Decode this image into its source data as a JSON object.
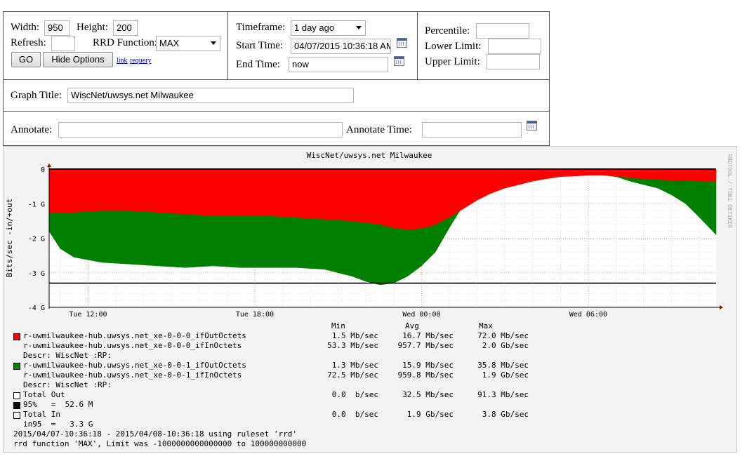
{
  "form": {
    "width_label": "Width:",
    "width_value": "950",
    "height_label": "Height:",
    "height_value": "200",
    "refresh_label": "Refresh:",
    "refresh_value": "",
    "rrd_label": "RRD Function:",
    "rrd_value": "MAX",
    "go_label": "GO",
    "hide_label": "Hide Options",
    "link_label": "link",
    "requery_label": "requery",
    "timeframe_label": "Timeframe:",
    "timeframe_value": "1 day ago",
    "start_label": "Start Time:",
    "start_value": "04/07/2015 10:36:18 AM",
    "end_label": "End Time:",
    "end_value": "now",
    "percentile_label": "Percentile:",
    "percentile_value": "",
    "lower_label": "Lower Limit:",
    "lower_value": "",
    "upper_label": "Upper Limit:",
    "upper_value": "",
    "graph_title_label": "Graph Title:",
    "graph_title_value": "WiscNet/uwsys.net Milwaukee",
    "annotate_label": "Annotate:",
    "annotate_value": "",
    "annotate_time_label": "Annotate Time:",
    "annotate_time_value": ""
  },
  "chart_data": {
    "type": "area",
    "title": "WiscNet/uwsys.net Milwaukee",
    "ylabel": "Bits/sec -in/+out",
    "ylim": [
      -4,
      0
    ],
    "y_unit": "G",
    "y_ticks": [
      "0",
      "-1 G",
      "-2 G",
      "-3 G",
      "-4 G"
    ],
    "x_ticks": [
      "Tue 12:00",
      "Tue 18:00",
      "Wed 00:00",
      "Wed 06:00"
    ],
    "x_hours": [
      12,
      18,
      24,
      30
    ],
    "x_range_hours": [
      10.6,
      34.6
    ],
    "side_label": "RRDTOOL / TOBI OETIKER",
    "grid": true,
    "reference_line_value": -3.3,
    "series": [
      {
        "name": "r-uwmilwaukee-hub.uwsys.net_xe-0-0-0_ifInOctets",
        "color": "#ff0000",
        "x": [
          10.6,
          11.5,
          12.5,
          13.5,
          14.5,
          15.5,
          16.5,
          17.5,
          18.5,
          19.5,
          20.5,
          21.5,
          22.5,
          23.0,
          23.5,
          24.0,
          24.5,
          25.0,
          25.5,
          26.0,
          26.5,
          27.0,
          27.5,
          28.0,
          28.5,
          29.0,
          29.5,
          30.0,
          30.5,
          31.0,
          31.5,
          32.0,
          32.5,
          33.0,
          33.5,
          34.0,
          34.6
        ],
        "values": [
          -1.25,
          -1.25,
          -1.2,
          -1.2,
          -1.25,
          -1.3,
          -1.35,
          -1.35,
          -1.35,
          -1.4,
          -1.45,
          -1.5,
          -1.6,
          -1.7,
          -1.75,
          -1.72,
          -1.6,
          -1.4,
          -1.15,
          -0.9,
          -0.7,
          -0.55,
          -0.45,
          -0.35,
          -0.28,
          -0.22,
          -0.2,
          -0.18,
          -0.18,
          -0.2,
          -0.25,
          -0.28,
          -0.3,
          -0.32,
          -0.33,
          -0.35,
          -0.35
        ]
      },
      {
        "name": "r-uwmilwaukee-hub.uwsys.net_xe-0-0-1_ifInOctets",
        "color": "#008000",
        "x": [
          10.6,
          11.0,
          11.5,
          12.5,
          13.5,
          14.5,
          15.5,
          16.5,
          17.5,
          18.5,
          19.5,
          20.5,
          21.5,
          22.0,
          22.5,
          23.0,
          23.5,
          24.0,
          24.5,
          25.0,
          25.5,
          26.0,
          26.5,
          27.0,
          27.5,
          28.0,
          28.5,
          29.0,
          29.5,
          30.0,
          30.5,
          31.0,
          31.5,
          32.0,
          32.5,
          33.0,
          33.5,
          34.0,
          34.6
        ],
        "values": [
          -1.8,
          -2.3,
          -2.55,
          -2.7,
          -2.75,
          -2.8,
          -2.85,
          -2.8,
          -2.85,
          -2.85,
          -2.85,
          -2.9,
          -3.1,
          -3.25,
          -3.35,
          -3.3,
          -3.1,
          -2.8,
          -2.4,
          -1.7,
          -1.05,
          -0.6,
          -0.4,
          -0.32,
          -0.25,
          -0.2,
          -0.17,
          -0.15,
          -0.15,
          -0.15,
          -0.17,
          -0.22,
          -0.35,
          -0.45,
          -0.55,
          -0.75,
          -1.0,
          -1.4,
          -1.9
        ]
      }
    ]
  },
  "legend": {
    "header_min": "Min",
    "header_avg": "Avg",
    "header_max": "Max",
    "rows": [
      {
        "text": "r-uwmilwaukee-hub.uwsys.net_xe-0-0-0_ifOutOctets",
        "min": "1.5 Mb/sec",
        "avg": "16.7 Mb/sec",
        "max": "72.0 Mb/sec",
        "swatch": "#ff0000"
      },
      {
        "text": "r-uwmilwaukee-hub.uwsys.net_xe-0-0-0_ifInOctets",
        "min": "53.3 Mb/sec",
        "avg": "957.7 Mb/sec",
        "max": "2.0 Gb/sec",
        "swatch": ""
      },
      {
        "text": "Descr: WiscNet :RP:",
        "min": "",
        "avg": "",
        "max": "",
        "swatch": ""
      },
      {
        "text": "r-uwmilwaukee-hub.uwsys.net_xe-0-0-1_ifOutOctets",
        "min": "1.3 Mb/sec",
        "avg": "15.9 Mb/sec",
        "max": "35.8 Mb/sec",
        "swatch": "#008000"
      },
      {
        "text": "r-uwmilwaukee-hub.uwsys.net_xe-0-0-1_ifInOctets",
        "min": "72.5 Mb/sec",
        "avg": "959.8 Mb/sec",
        "max": "1.9 Gb/sec",
        "swatch": ""
      },
      {
        "text": "Descr: WiscNet :RP:",
        "min": "",
        "avg": "",
        "max": "",
        "swatch": ""
      },
      {
        "text": "Total Out",
        "min": "0.0  b/sec",
        "avg": "32.5 Mb/sec",
        "max": "91.3 Mb/sec",
        "swatch": "#ffffff"
      },
      {
        "text": "95%   =  52.6 M",
        "min": "",
        "avg": "",
        "max": "",
        "swatch": "#000000"
      },
      {
        "text": "Total In",
        "min": "0.0  b/sec",
        "avg": "1.9 Gb/sec",
        "max": "3.8 Gb/sec",
        "swatch": "#ffffff"
      },
      {
        "text": "in95  =   3.3 G",
        "min": "",
        "avg": "",
        "max": "",
        "swatch": ""
      }
    ],
    "footer1": "2015/04/07-10:36:18 - 2015/04/08-10:36:18 using ruleset 'rrd'",
    "footer2": "rrd function 'MAX', Limit was -1000000000000000 to 100000000000"
  }
}
